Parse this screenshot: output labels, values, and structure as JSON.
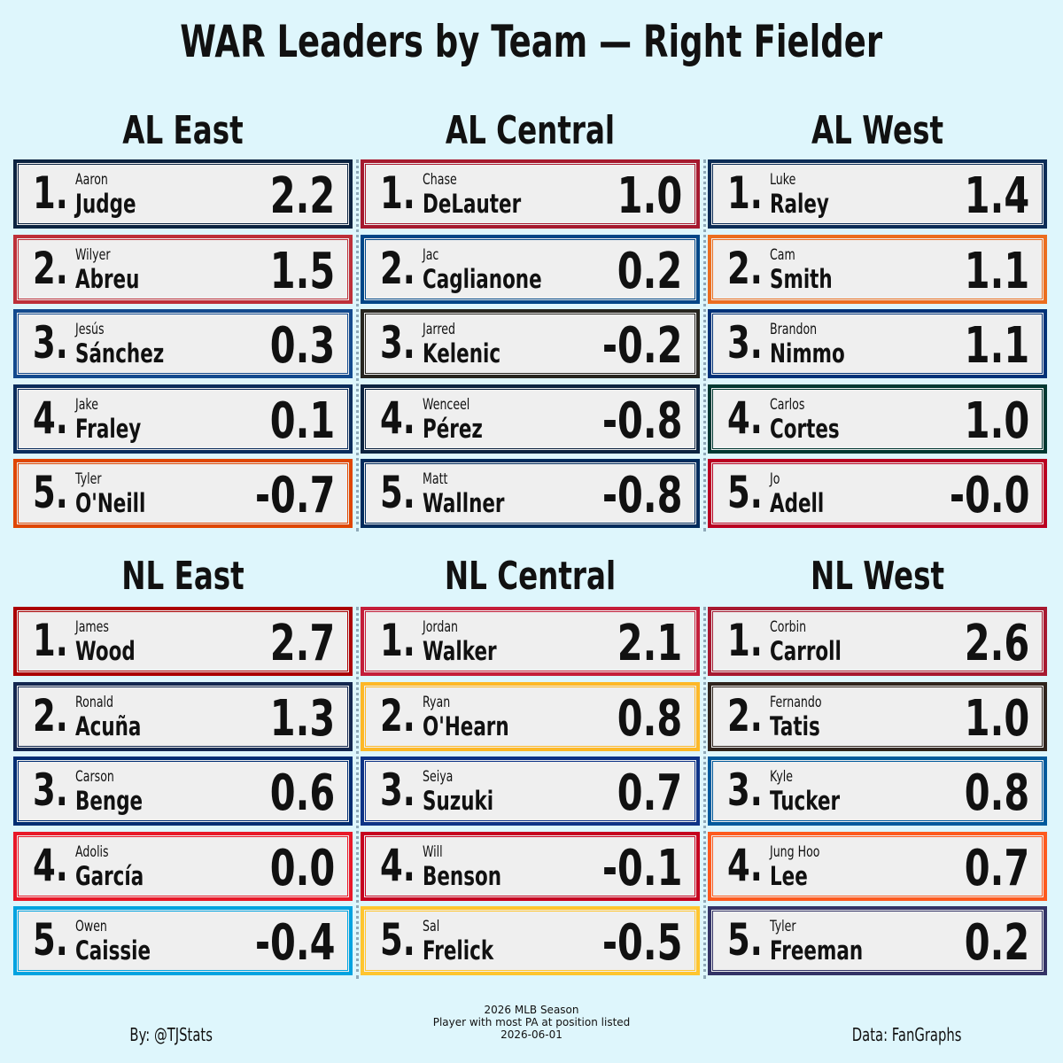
{
  "title": "WAR Leaders by Team — Right Fielder",
  "divisions": [
    {
      "name": "AL East",
      "players": [
        {
          "rank": "1.",
          "first": "Aaron",
          "last": "Judge",
          "war": "2.2",
          "color": "#0c2340"
        },
        {
          "rank": "2.",
          "first": "Wilyer",
          "last": "Abreu",
          "war": "1.5",
          "color": "#bd3039"
        },
        {
          "rank": "3.",
          "first": "Jesús",
          "last": "Sánchez",
          "war": "0.3",
          "color": "#134a8e"
        },
        {
          "rank": "4.",
          "first": "Jake",
          "last": "Fraley",
          "war": "0.1",
          "color": "#092c5c"
        },
        {
          "rank": "5.",
          "first": "Tyler",
          "last": "O'Neill",
          "war": "-0.7",
          "color": "#df4601"
        }
      ]
    },
    {
      "name": "AL Central",
      "players": [
        {
          "rank": "1.",
          "first": "Chase",
          "last": "DeLauter",
          "war": "1.0",
          "color": "#a6192e"
        },
        {
          "rank": "2.",
          "first": "Jac",
          "last": "Caglianone",
          "war": "0.2",
          "color": "#004687"
        },
        {
          "rank": "3.",
          "first": "Jarred",
          "last": "Kelenic",
          "war": "-0.2",
          "color": "#27251f"
        },
        {
          "rank": "4.",
          "first": "Wenceel",
          "last": "Pérez",
          "war": "-0.8",
          "color": "#0c2340"
        },
        {
          "rank": "5.",
          "first": "Matt",
          "last": "Wallner",
          "war": "-0.8",
          "color": "#002b5c"
        }
      ]
    },
    {
      "name": "AL West",
      "players": [
        {
          "rank": "1.",
          "first": "Luke",
          "last": "Raley",
          "war": "1.4",
          "color": "#0c2c56"
        },
        {
          "rank": "2.",
          "first": "Cam",
          "last": "Smith",
          "war": "1.1",
          "color": "#eb6e1f"
        },
        {
          "rank": "3.",
          "first": "Brandon",
          "last": "Nimmo",
          "war": "1.1",
          "color": "#003278"
        },
        {
          "rank": "4.",
          "first": "Carlos",
          "last": "Cortes",
          "war": "1.0",
          "color": "#003831"
        },
        {
          "rank": "5.",
          "first": "Jo",
          "last": "Adell",
          "war": "-0.0",
          "color": "#ba0021"
        }
      ]
    },
    {
      "name": "NL East",
      "players": [
        {
          "rank": "1.",
          "first": "James",
          "last": "Wood",
          "war": "2.7",
          "color": "#ab0003"
        },
        {
          "rank": "2.",
          "first": "Ronald",
          "last": "Acuña",
          "war": "1.3",
          "color": "#13274f"
        },
        {
          "rank": "3.",
          "first": "Carson",
          "last": "Benge",
          "war": "0.6",
          "color": "#002d72"
        },
        {
          "rank": "4.",
          "first": "Adolis",
          "last": "García",
          "war": "0.0",
          "color": "#e81828"
        },
        {
          "rank": "5.",
          "first": "Owen",
          "last": "Caissie",
          "war": "-0.4",
          "color": "#00a3e0"
        }
      ]
    },
    {
      "name": "NL Central",
      "players": [
        {
          "rank": "1.",
          "first": "Jordan",
          "last": "Walker",
          "war": "2.1",
          "color": "#c41e3a"
        },
        {
          "rank": "2.",
          "first": "Ryan",
          "last": "O'Hearn",
          "war": "0.8",
          "color": "#fdb827"
        },
        {
          "rank": "3.",
          "first": "Seiya",
          "last": "Suzuki",
          "war": "0.7",
          "color": "#0e3386"
        },
        {
          "rank": "4.",
          "first": "Will",
          "last": "Benson",
          "war": "-0.1",
          "color": "#c6011f"
        },
        {
          "rank": "5.",
          "first": "Sal",
          "last": "Frelick",
          "war": "-0.5",
          "color": "#ffc52f"
        }
      ]
    },
    {
      "name": "NL West",
      "players": [
        {
          "rank": "1.",
          "first": "Corbin",
          "last": "Carroll",
          "war": "2.6",
          "color": "#a71930"
        },
        {
          "rank": "2.",
          "first": "Fernando",
          "last": "Tatis",
          "war": "1.0",
          "color": "#2f241d"
        },
        {
          "rank": "3.",
          "first": "Kyle",
          "last": "Tucker",
          "war": "0.8",
          "color": "#005a9c"
        },
        {
          "rank": "4.",
          "first": "Jung Hoo",
          "last": "Lee",
          "war": "0.7",
          "color": "#fd5a1e"
        },
        {
          "rank": "5.",
          "first": "Tyler",
          "last": "Freeman",
          "war": "0.2",
          "color": "#333366"
        }
      ]
    }
  ],
  "footer": {
    "left": "By: @TJStats",
    "center": [
      "2026 MLB Season",
      "Player with most PA at position listed",
      "2026-06-01"
    ],
    "right": "Data: FanGraphs"
  }
}
